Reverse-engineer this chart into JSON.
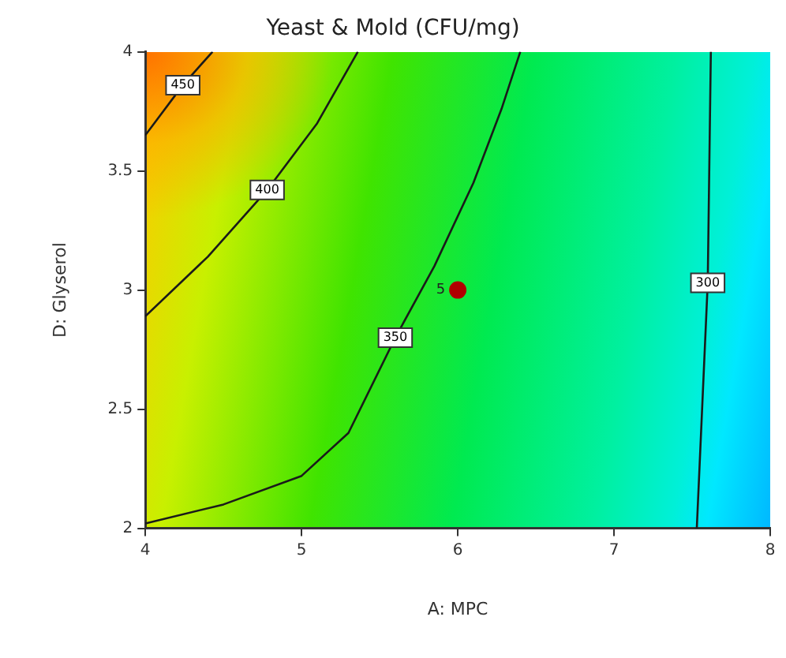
{
  "chart_data": {
    "type": "line",
    "title": "Yeast & Mold (CFU/mg)",
    "xlabel": "A: MPC",
    "ylabel": "D: Glyserol",
    "xlim": [
      4,
      8
    ],
    "xticks": [
      4,
      5,
      6,
      7,
      8
    ],
    "ylim": [
      2,
      4
    ],
    "yticks": [
      2,
      2.5,
      3,
      3.5,
      4
    ],
    "legend": false,
    "marker": "none",
    "series": [
      {
        "name": "450",
        "color": "#1a1a1a",
        "x": [
          4,
          4.24,
          4.43
        ],
        "values": [
          3.65,
          3.86,
          4
        ]
      },
      {
        "name": "400",
        "color": "#1a1a1a",
        "x": [
          4,
          4.4,
          4.78,
          5.1,
          5.36
        ],
        "values": [
          2.89,
          3.14,
          3.42,
          3.7,
          4
        ]
      },
      {
        "name": "350",
        "color": "#1a1a1a",
        "x": [
          4,
          4.5,
          5,
          5.3,
          5.6,
          5.85,
          6.1,
          6.28,
          6.4
        ],
        "values": [
          2.02,
          2.1,
          2.22,
          2.4,
          2.8,
          3.1,
          3.45,
          3.76,
          4
        ]
      },
      {
        "name": "300",
        "color": "#1a1a1a",
        "x": [
          7.53,
          7.6,
          7.62
        ],
        "values": [
          2,
          3.03,
          4
        ]
      },
      {
        "type": "scatter",
        "marker": "circle",
        "color": "#b00000",
        "x": [
          6
        ],
        "values": [
          3
        ]
      }
    ],
    "annotations": [
      {
        "text": "5",
        "x": 6,
        "y": 3
      }
    ]
  }
}
